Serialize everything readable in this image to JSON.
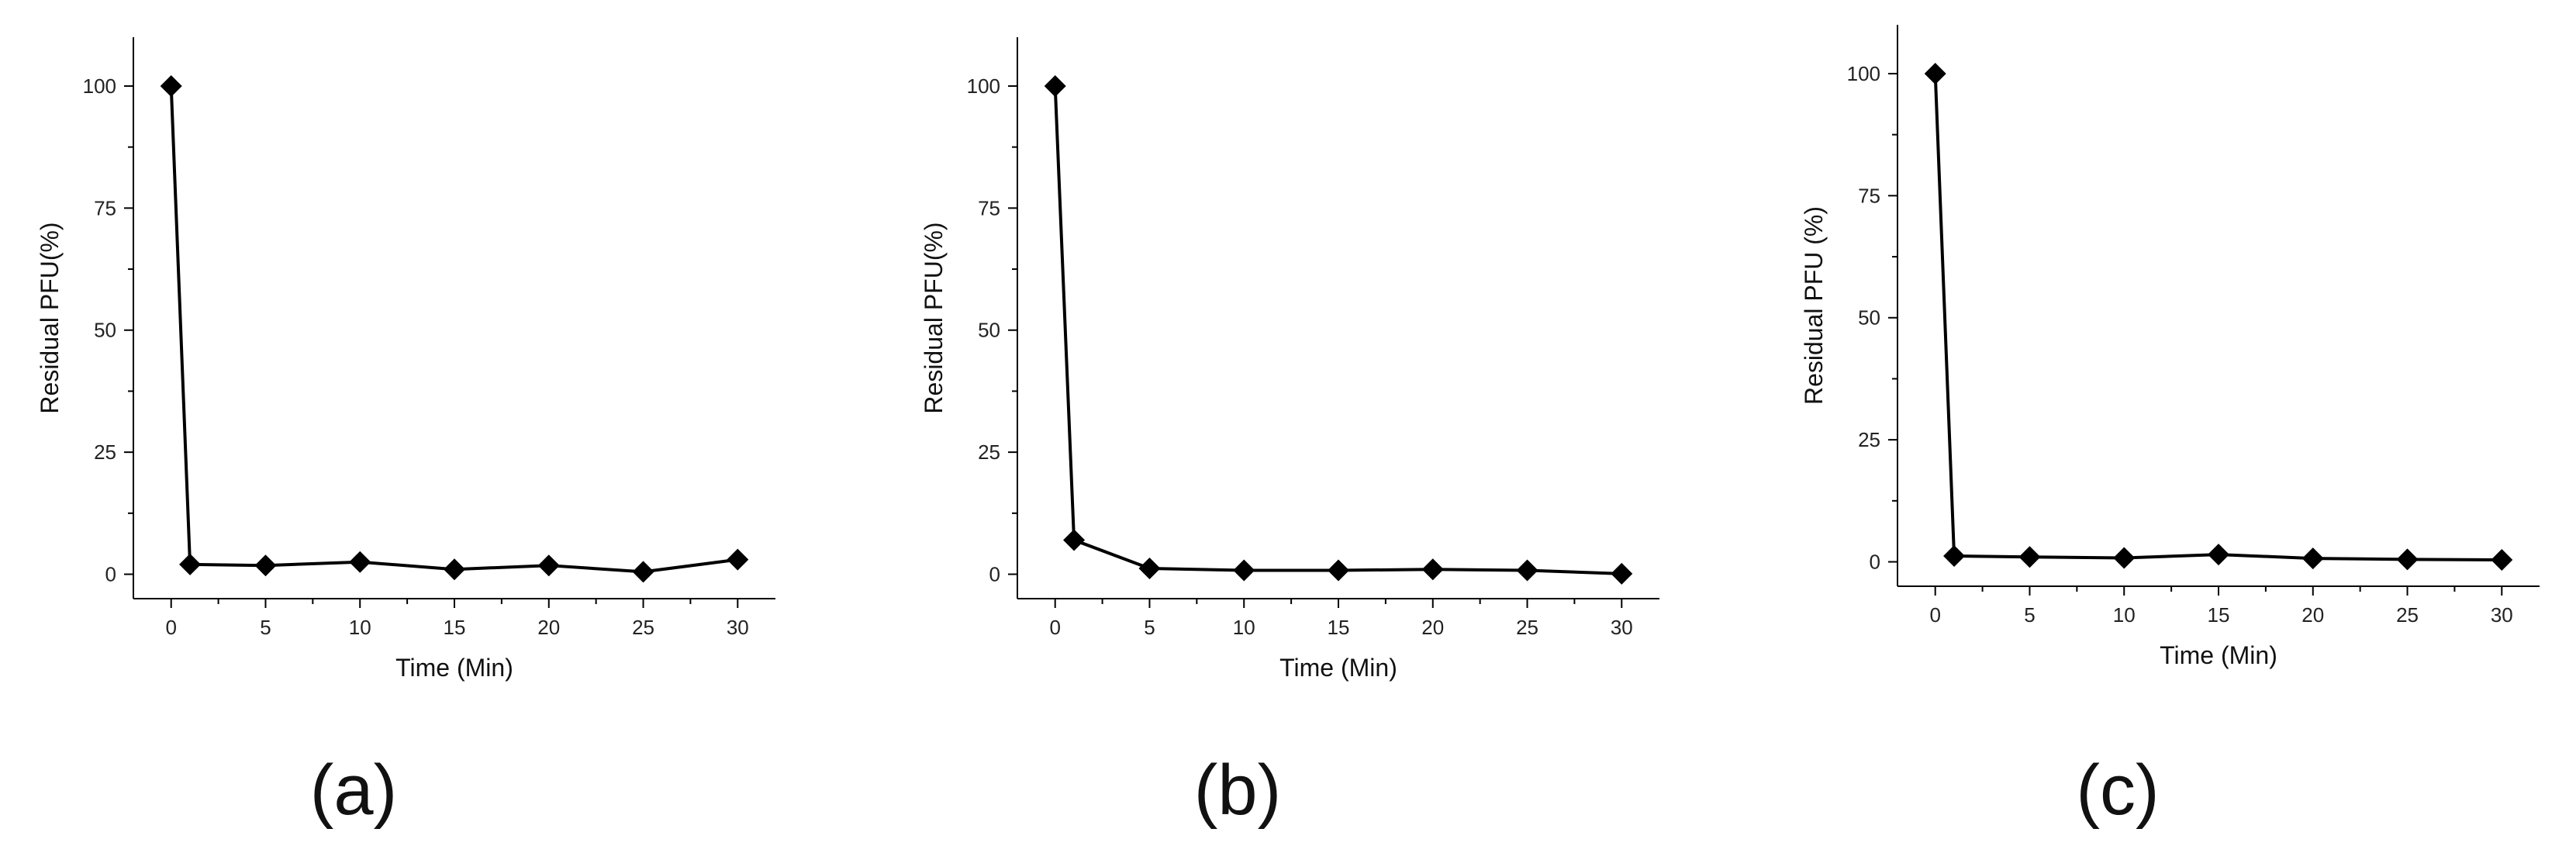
{
  "chart_data": [
    {
      "panel_label": "(a)",
      "type": "line",
      "xlabel": "Time (Min)",
      "ylabel": "Residual PFU(%)",
      "xlim": [
        -2,
        32
      ],
      "ylim": [
        -5,
        110
      ],
      "xticks": [
        0,
        5,
        10,
        15,
        20,
        25,
        30
      ],
      "yticks": [
        0,
        25,
        50,
        75,
        100
      ],
      "x": [
        0,
        1,
        5,
        10,
        15,
        20,
        25,
        30
      ],
      "series": [
        {
          "values": [
            100,
            2.0,
            1.8,
            2.5,
            1.0,
            1.8,
            0.5,
            3.0
          ]
        }
      ],
      "marker": "diamond",
      "color": "#000000",
      "grid": false
    },
    {
      "panel_label": "(b)",
      "type": "line",
      "xlabel": "Time (Min)",
      "ylabel": "Residual PFU(%)",
      "xlim": [
        -2,
        32
      ],
      "ylim": [
        -5,
        110
      ],
      "xticks": [
        0,
        5,
        10,
        15,
        20,
        25,
        30
      ],
      "yticks": [
        0,
        25,
        50,
        75,
        100
      ],
      "x": [
        0,
        1,
        5,
        10,
        15,
        20,
        25,
        30
      ],
      "series": [
        {
          "values": [
            100,
            7.0,
            1.2,
            0.8,
            0.8,
            1.0,
            0.8,
            0.1
          ]
        }
      ],
      "marker": "diamond",
      "color": "#000000",
      "grid": false
    },
    {
      "panel_label": "(c)",
      "type": "line",
      "xlabel": "Time (Min)",
      "ylabel": "Residual PFU (%)",
      "xlim": [
        -2,
        32
      ],
      "ylim": [
        -5,
        110
      ],
      "xticks": [
        0,
        5,
        10,
        15,
        20,
        25,
        30
      ],
      "yticks": [
        0,
        25,
        50,
        75,
        100
      ],
      "x": [
        0,
        1,
        5,
        10,
        15,
        20,
        25,
        30
      ],
      "series": [
        {
          "values": [
            100,
            1.2,
            1.0,
            0.8,
            1.5,
            0.7,
            0.5,
            0.4
          ]
        }
      ],
      "marker": "diamond",
      "color": "#000000",
      "grid": false
    }
  ]
}
